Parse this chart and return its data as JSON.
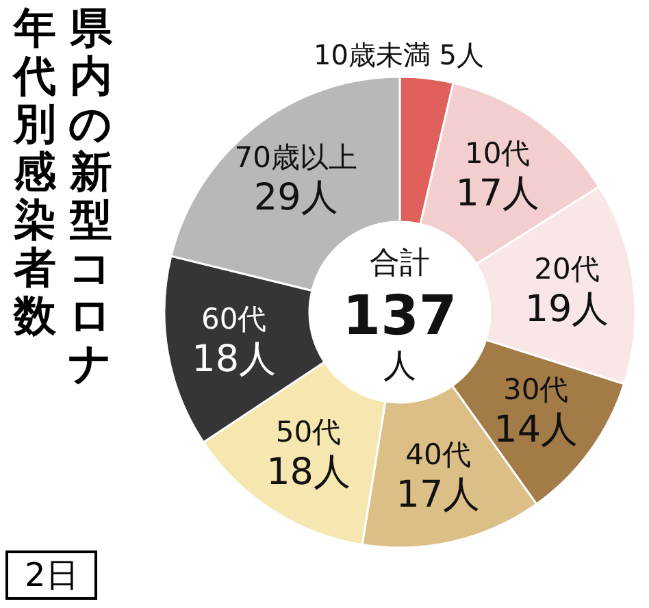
{
  "chart_data": {
    "type": "donut",
    "title": "県内の新型コロナ年代別感染者数",
    "categories": [
      "10歳未満",
      "10代",
      "20代",
      "30代",
      "40代",
      "50代",
      "60代",
      "70歳以上"
    ],
    "values": [
      5,
      17,
      19,
      14,
      17,
      18,
      18,
      29
    ],
    "value_labels": [
      "5人",
      "17人",
      "19人",
      "14人",
      "17人",
      "18人",
      "18人",
      "29人"
    ],
    "colors": [
      "#e0605c",
      "#f2cece",
      "#f9e6e6",
      "#a27b46",
      "#dcbf86",
      "#f6e7b0",
      "#353535",
      "#b8b8b8"
    ],
    "annotations": [
      "合計",
      "137",
      "人",
      "2日"
    ]
  }
}
